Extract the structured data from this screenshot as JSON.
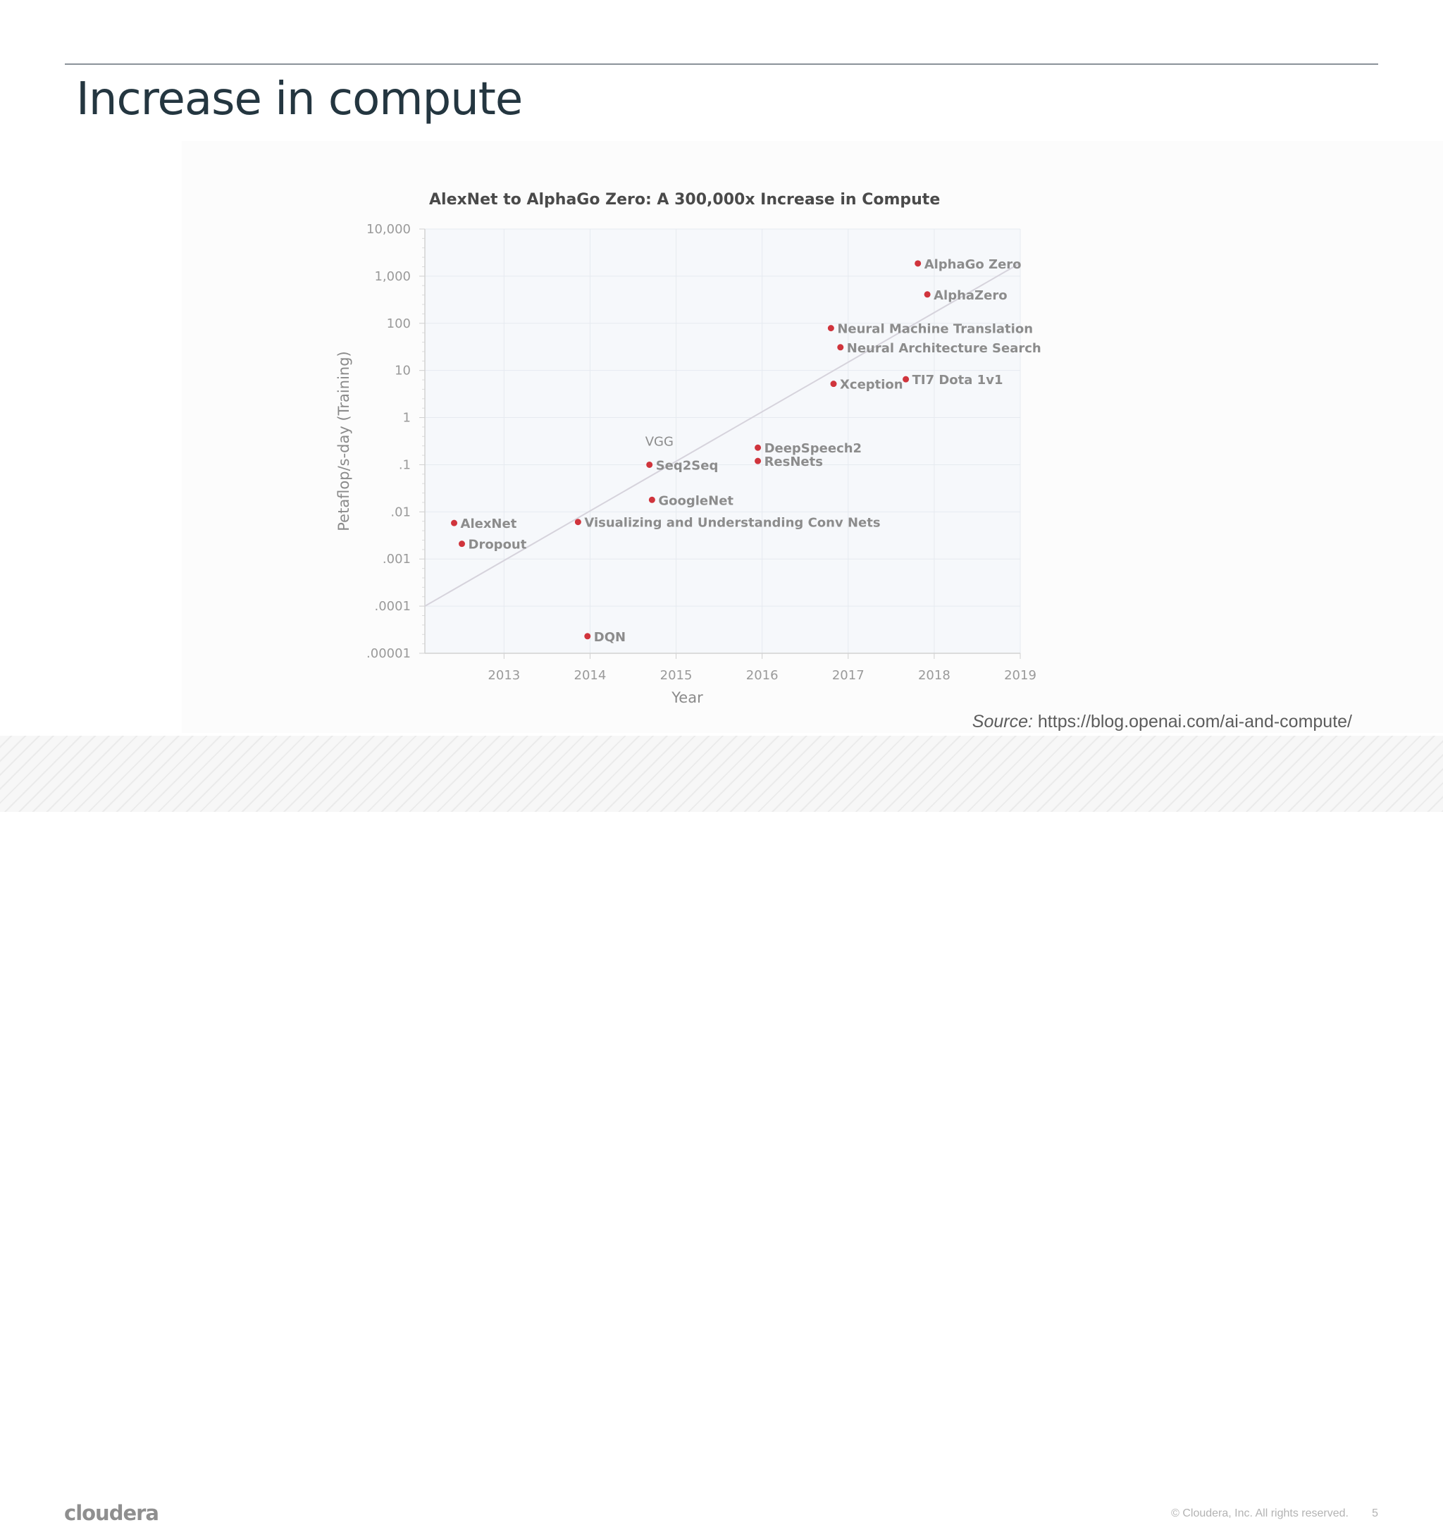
{
  "slide": {
    "title": "Increase in compute",
    "source_label": "Source:",
    "source_url": "https://blog.openai.com/ai-and-compute/",
    "logo_text": "cloudera",
    "copyright": "© Cloudera, Inc. All rights reserved.",
    "page_number": "5"
  },
  "chart_data": {
    "type": "scatter",
    "title": "AlexNet to AlphaGo Zero: A 300,000x Increase in Compute",
    "xlabel": "Year",
    "ylabel": "Petaflop/s-day (Training)",
    "y_scale": "log",
    "xlim": [
      2012.08,
      2019
    ],
    "ylim": [
      1e-05,
      10000
    ],
    "x_ticks": [
      "2013",
      "2014",
      "2015",
      "2016",
      "2017",
      "2018",
      "2019"
    ],
    "y_ticks": [
      "10,000",
      "1,000",
      "100",
      "10",
      "1",
      ".1",
      ".01",
      ".001",
      ".0001",
      ".00001"
    ],
    "grid": true,
    "marker_color": "#d0343c",
    "trend_line": {
      "from": [
        2012.08,
        0.0001
      ],
      "to": [
        2019,
        1900
      ]
    },
    "points": [
      {
        "label": "AlexNet",
        "x": 2012.42,
        "y": 0.0058
      },
      {
        "label": "Dropout",
        "x": 2012.51,
        "y": 0.0021
      },
      {
        "label": "DQN",
        "x": 2013.97,
        "y": 2.3e-05
      },
      {
        "label": "Visualizing and Understanding Conv Nets",
        "x": 2013.86,
        "y": 0.0061
      },
      {
        "label": "GoogleNet",
        "x": 2014.72,
        "y": 0.018
      },
      {
        "label": "Seq2Seq",
        "x": 2014.69,
        "y": 0.1,
        "extra_label": "VGG"
      },
      {
        "label": "DeepSpeech2",
        "x": 2015.95,
        "y": 0.23
      },
      {
        "label": "ResNets",
        "x": 2015.95,
        "y": 0.12
      },
      {
        "label": "Xception",
        "x": 2016.83,
        "y": 5.2
      },
      {
        "label": "TI7 Dota 1v1",
        "x": 2017.67,
        "y": 6.5
      },
      {
        "label": "Neural Architecture Search",
        "x": 2016.91,
        "y": 31
      },
      {
        "label": "Neural Machine Translation",
        "x": 2016.8,
        "y": 79
      },
      {
        "label": "AlphaZero",
        "x": 2017.92,
        "y": 410
      },
      {
        "label": "AlphaGo Zero",
        "x": 2017.81,
        "y": 1860
      }
    ]
  }
}
